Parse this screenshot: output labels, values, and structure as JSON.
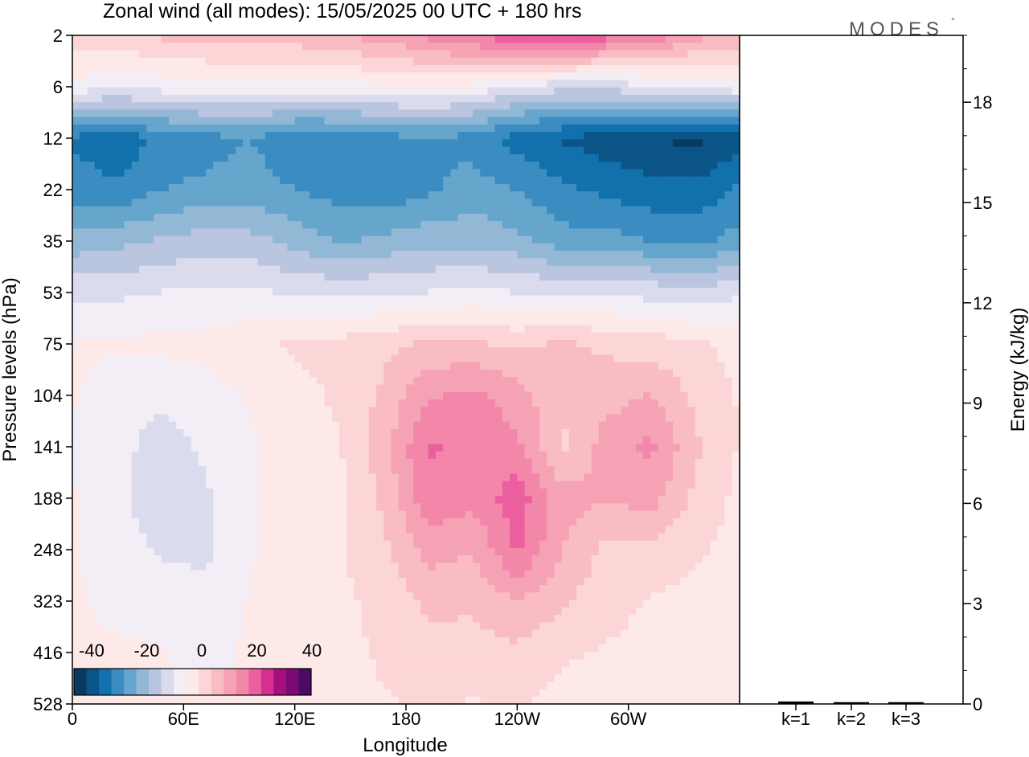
{
  "title": "Zonal wind (all modes):  15/05/2025  00 UTC  + 180 hrs",
  "logo": {
    "text": "MODES",
    "mark": "°"
  },
  "chart_data": [
    {
      "type": "heatmap",
      "name": "zonal-wind-section",
      "title": "Zonal wind (all modes):  15/05/2025  00 UTC  + 180 hrs",
      "xlabel": "Longitude",
      "ylabel": "Pressure levels (hPa)",
      "x_ticks": [
        {
          "deg": 0,
          "label": "0"
        },
        {
          "deg": 60,
          "label": "60E"
        },
        {
          "deg": 120,
          "label": "120E"
        },
        {
          "deg": 180,
          "label": "180"
        },
        {
          "deg": 240,
          "label": "120W"
        },
        {
          "deg": 300,
          "label": "60W"
        }
      ],
      "x_range_deg": [
        0,
        360
      ],
      "y_levels": [
        "2",
        "6",
        "12",
        "22",
        "35",
        "53",
        "75",
        "104",
        "141",
        "188",
        "248",
        "323",
        "416",
        "528"
      ],
      "colorbar": {
        "labels": [
          "-40",
          "-20",
          "0",
          "20",
          "40"
        ],
        "range": [
          -45,
          45
        ],
        "colors": [
          "#0a3a5e",
          "#0b5487",
          "#1270ad",
          "#3b8cc0",
          "#66a5cc",
          "#93b8d6",
          "#bac6e0",
          "#dadbed",
          "#f3eef6",
          "#fde9e8",
          "#fcd5d6",
          "#f9bcc3",
          "#f6a2b5",
          "#f287aa",
          "#ec5f9f",
          "#d4308f",
          "#a80f7e",
          "#7b0a75",
          "#4b0b65"
        ]
      },
      "field_values_description": "zonal wind in m/s by level (top to bottom) and longitude band",
      "values": [
        [
          6,
          6,
          8,
          9,
          10,
          10,
          12,
          14,
          18,
          22,
          25,
          26,
          24,
          20,
          14,
          10
        ],
        [
          -4,
          -6,
          -5,
          -4,
          -4,
          -5,
          -4,
          -3,
          -2,
          -4,
          -8,
          -10,
          -10,
          -8,
          -6,
          -4
        ],
        [
          -32,
          -34,
          -30,
          -28,
          -26,
          -30,
          -30,
          -28,
          -26,
          -28,
          -33,
          -36,
          -38,
          -40,
          -42,
          -38
        ],
        [
          -28,
          -30,
          -26,
          -25,
          -24,
          -26,
          -28,
          -30,
          -27,
          -24,
          -26,
          -30,
          -32,
          -34,
          -34,
          -30
        ],
        [
          -20,
          -18,
          -16,
          -14,
          -15,
          -18,
          -22,
          -20,
          -18,
          -18,
          -20,
          -24,
          -24,
          -26,
          -28,
          -24
        ],
        [
          -8,
          -8,
          -7,
          -6,
          -6,
          -8,
          -8,
          -8,
          -7,
          -6,
          -7,
          -8,
          -8,
          -9,
          -10,
          -8
        ],
        [
          -2,
          -2,
          -1,
          -1,
          1,
          3,
          4,
          6,
          8,
          8,
          6,
          8,
          6,
          5,
          3,
          1
        ],
        [
          -2,
          -4,
          -6,
          -4,
          -2,
          1,
          3,
          8,
          16,
          18,
          14,
          8,
          10,
          12,
          6,
          2
        ],
        [
          -3,
          -5,
          -10,
          -6,
          -3,
          1,
          2,
          10,
          22,
          20,
          18,
          6,
          14,
          18,
          8,
          2
        ],
        [
          -2,
          -5,
          -12,
          -8,
          -3,
          2,
          1,
          8,
          20,
          18,
          24,
          14,
          12,
          14,
          6,
          1
        ],
        [
          -2,
          -4,
          -8,
          -8,
          -3,
          1,
          2,
          6,
          14,
          12,
          22,
          12,
          6,
          6,
          3,
          1
        ],
        [
          -2,
          -3,
          -4,
          -6,
          -2,
          1,
          1,
          4,
          8,
          8,
          12,
          8,
          4,
          2,
          1,
          0
        ],
        [
          -2,
          -2,
          -2,
          -5,
          -1,
          0,
          1,
          3,
          6,
          5,
          6,
          3,
          2,
          1,
          0,
          -1
        ],
        [
          -1,
          -2,
          -1,
          -2,
          -1,
          0,
          1,
          2,
          3,
          2,
          3,
          1,
          0,
          -1,
          -2,
          -2
        ]
      ]
    },
    {
      "type": "bar",
      "name": "energy-panel",
      "ylabel": "Energy (kJ/kg)",
      "categories": [
        "k=1",
        "k=2",
        "k=3"
      ],
      "values": [
        0.05,
        0.03,
        0.03
      ],
      "ylim": [
        0,
        20
      ],
      "y_ticks": [
        0,
        3,
        6,
        9,
        12,
        15,
        18
      ]
    }
  ]
}
